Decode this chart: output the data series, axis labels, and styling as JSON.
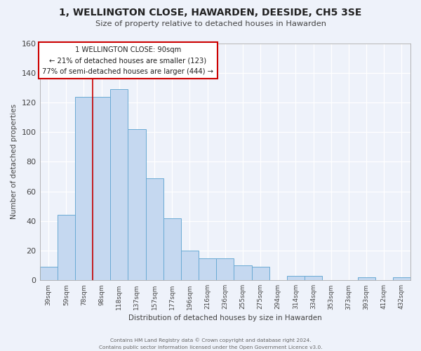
{
  "title": "1, WELLINGTON CLOSE, HAWARDEN, DEESIDE, CH5 3SE",
  "subtitle": "Size of property relative to detached houses in Hawarden",
  "xlabel": "Distribution of detached houses by size in Hawarden",
  "ylabel": "Number of detached properties",
  "categories": [
    "39sqm",
    "59sqm",
    "78sqm",
    "98sqm",
    "118sqm",
    "137sqm",
    "157sqm",
    "177sqm",
    "196sqm",
    "216sqm",
    "236sqm",
    "255sqm",
    "275sqm",
    "294sqm",
    "314sqm",
    "334sqm",
    "353sqm",
    "373sqm",
    "393sqm",
    "412sqm",
    "432sqm"
  ],
  "values": [
    9,
    44,
    124,
    124,
    129,
    102,
    69,
    42,
    20,
    15,
    15,
    10,
    9,
    0,
    3,
    3,
    0,
    0,
    2,
    0,
    2
  ],
  "bar_color": "#c5d8f0",
  "bar_edge_color": "#6aaad4",
  "background_color": "#eef2fa",
  "plot_bg_color": "#eef2fa",
  "grid_color": "#ffffff",
  "redline_x": 2.5,
  "redline_color": "#cc0000",
  "annotation_line1": "1 WELLINGTON CLOSE: 90sqm",
  "annotation_line2": "← 21% of detached houses are smaller (123)",
  "annotation_line3": "77% of semi-detached houses are larger (444) →",
  "annotation_box_facecolor": "#ffffff",
  "annotation_box_edgecolor": "#cc0000",
  "ylim": [
    0,
    160
  ],
  "yticks": [
    0,
    20,
    40,
    60,
    80,
    100,
    120,
    140,
    160
  ],
  "footer_line1": "Contains HM Land Registry data © Crown copyright and database right 2024.",
  "footer_line2": "Contains public sector information licensed under the Open Government Licence v3.0."
}
